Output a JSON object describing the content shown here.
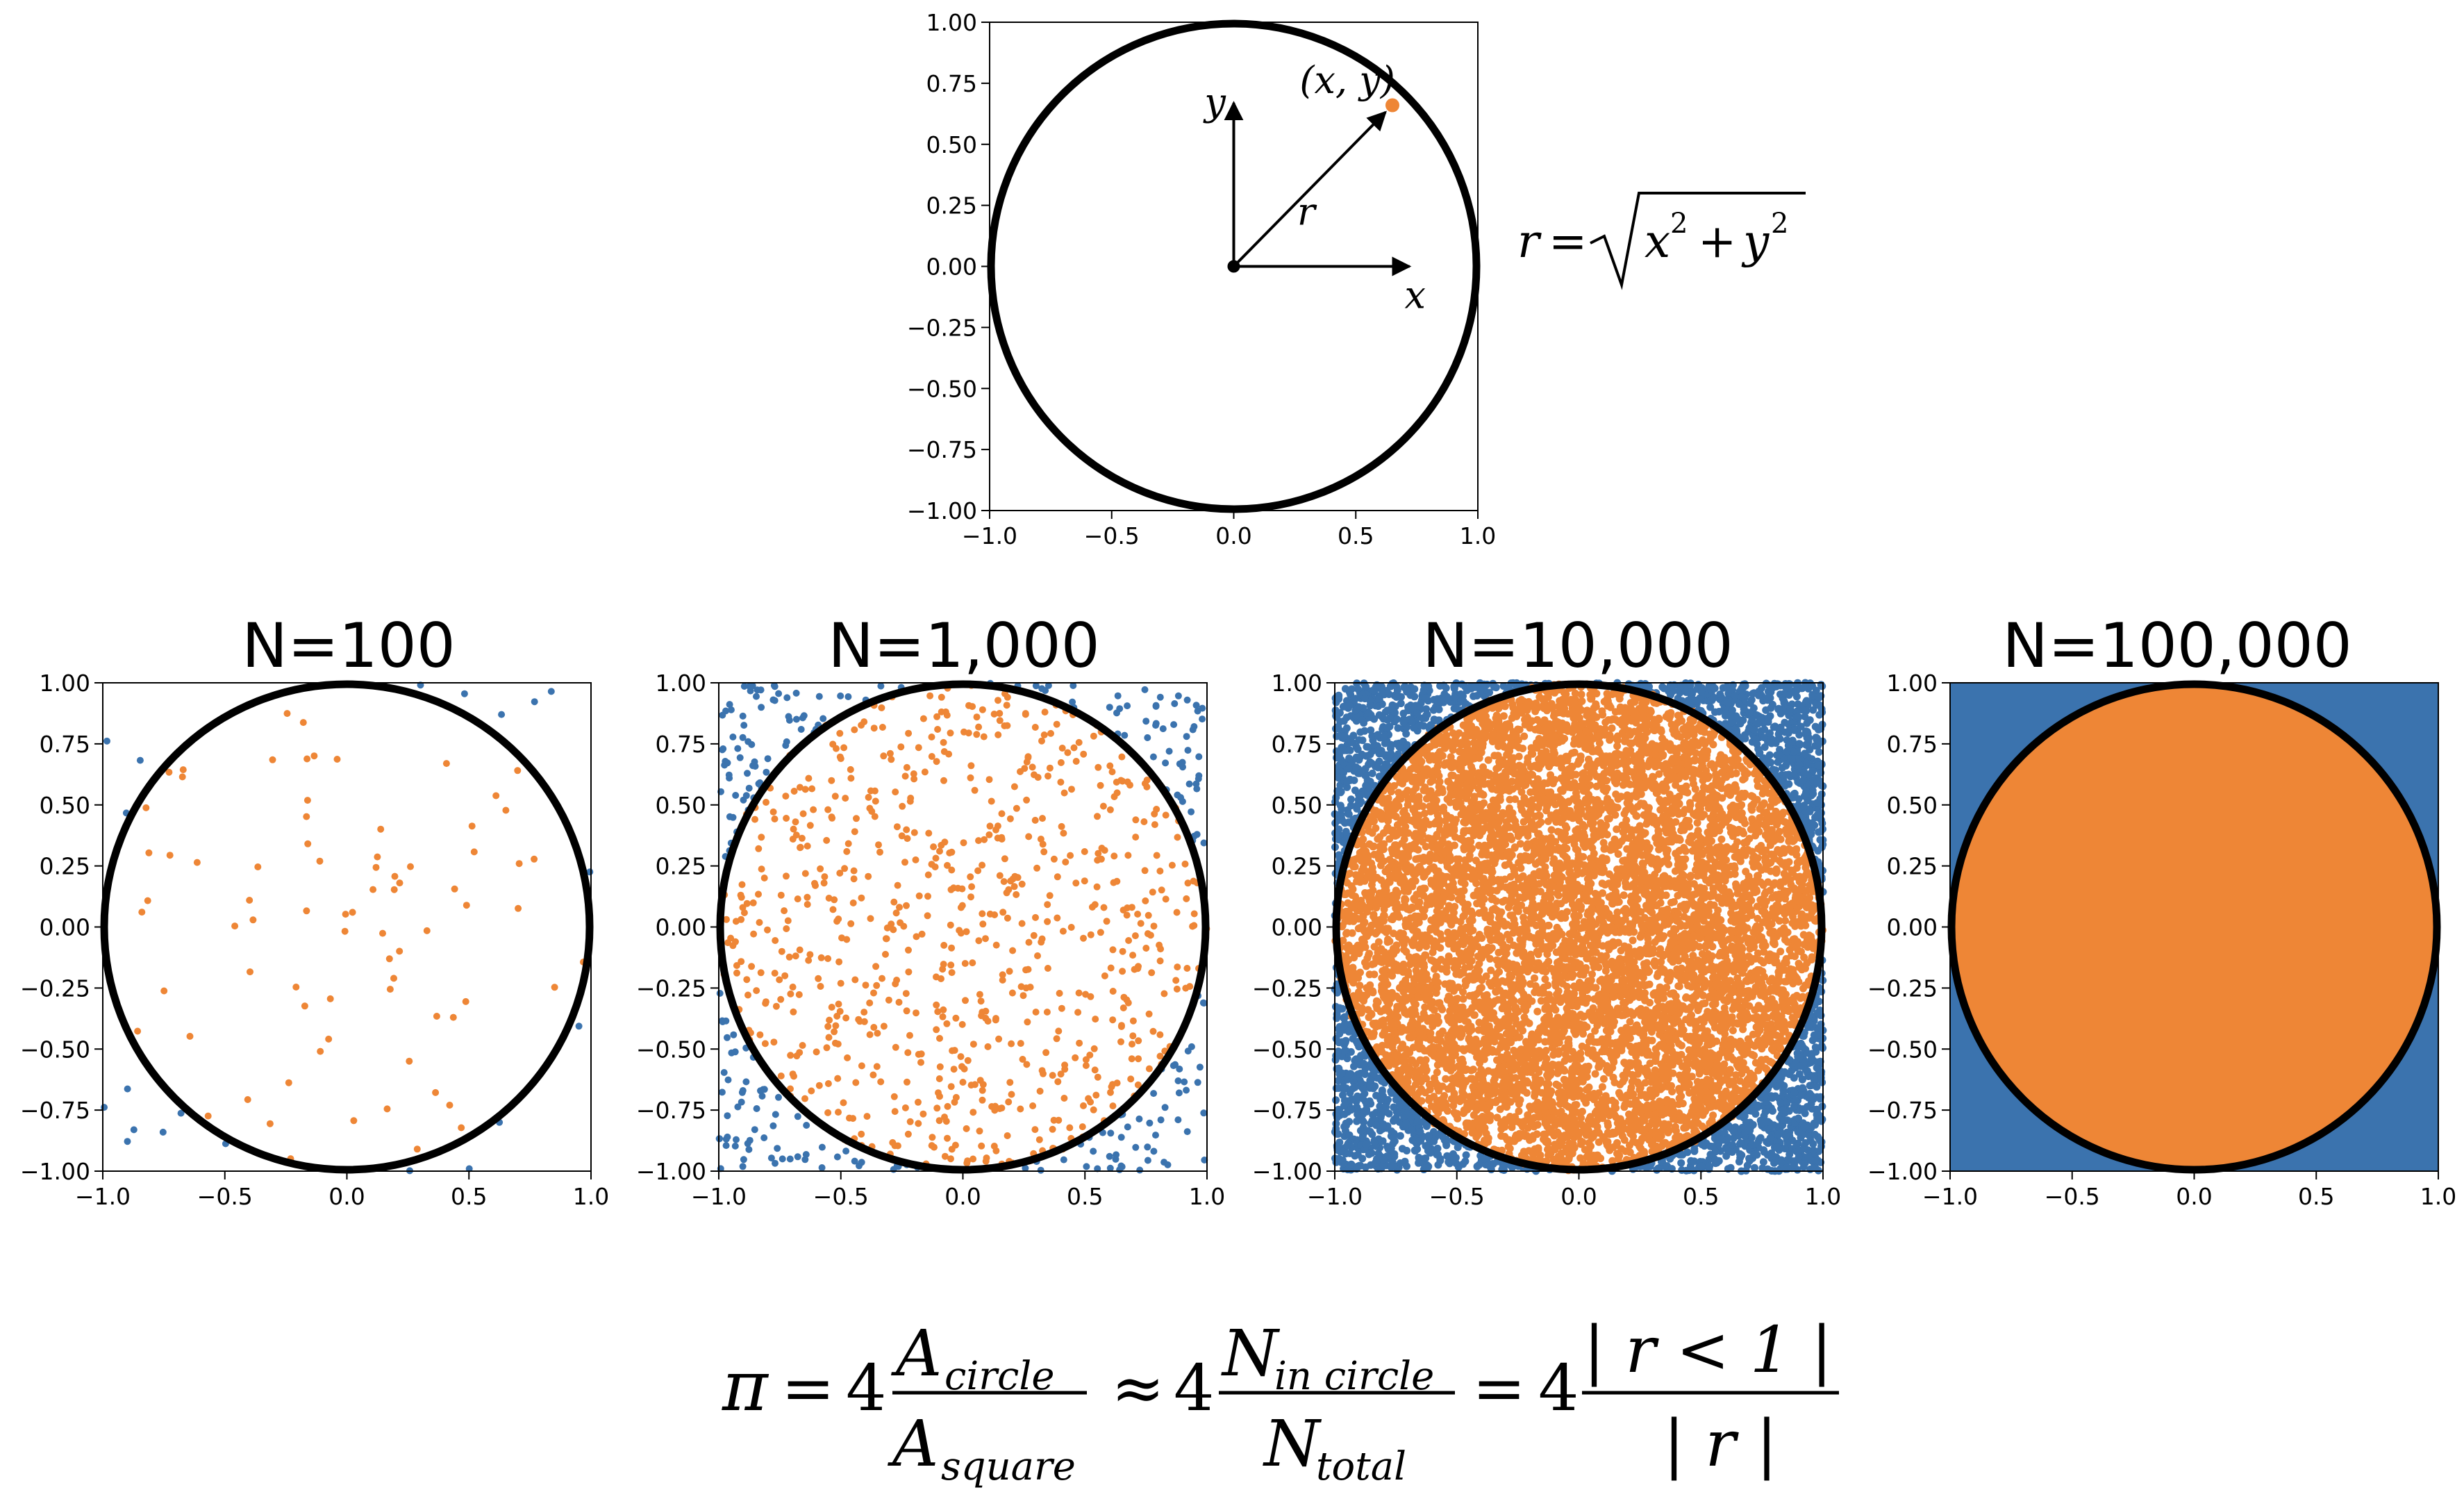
{
  "chart_data": [
    {
      "type": "scatter",
      "id": "diagram",
      "title": "",
      "xlim": [
        -1.0,
        1.0
      ],
      "ylim": [
        -1.0,
        1.0
      ],
      "xticks": [
        "−1.0",
        "−0.5",
        "0.0",
        "0.5",
        "1.0"
      ],
      "yticks": [
        "1.00",
        "0.75",
        "0.50",
        "0.25",
        "0.00",
        "−0.25",
        "−0.50",
        "−0.75",
        "−1.00"
      ],
      "circle_radius": 1.0,
      "point": {
        "x": 0.65,
        "y": 0.66,
        "label": "(x, y)"
      },
      "radius_label": "r",
      "axis_arrows": {
        "x_label": "x",
        "y_label": "y"
      },
      "formula": "r = √(x² + y²)"
    },
    {
      "type": "scatter",
      "id": "n100",
      "title": "N=100",
      "n": 100,
      "xlim": [
        -1.0,
        1.0
      ],
      "ylim": [
        -1.0,
        1.0
      ],
      "xticks": [
        "−1.0",
        "−0.5",
        "0.0",
        "0.5",
        "1.0"
      ],
      "yticks": [
        "1.00",
        "0.75",
        "0.50",
        "0.25",
        "0.00",
        "−0.25",
        "−0.50",
        "−0.75",
        "−1.00"
      ],
      "seed": 11
    },
    {
      "type": "scatter",
      "id": "n1000",
      "title": "N=1,000",
      "n": 1000,
      "xlim": [
        -1.0,
        1.0
      ],
      "ylim": [
        -1.0,
        1.0
      ],
      "xticks": [
        "−1.0",
        "−0.5",
        "0.0",
        "0.5",
        "1.0"
      ],
      "yticks": [
        "1.00",
        "0.75",
        "0.50",
        "0.25",
        "0.00",
        "−0.25",
        "−0.50",
        "−0.75",
        "−1.00"
      ],
      "seed": 23
    },
    {
      "type": "scatter",
      "id": "n10000",
      "title": "N=10,000",
      "n": 10000,
      "xlim": [
        -1.0,
        1.0
      ],
      "ylim": [
        -1.0,
        1.0
      ],
      "xticks": [
        "−1.0",
        "−0.5",
        "0.0",
        "0.5",
        "1.0"
      ],
      "yticks": [
        "1.00",
        "0.75",
        "0.50",
        "0.25",
        "0.00",
        "−0.25",
        "−0.50",
        "−0.75",
        "−1.00"
      ],
      "seed": 37
    },
    {
      "type": "scatter",
      "id": "n100000",
      "title": "N=100,000",
      "n": 100000,
      "xlim": [
        -1.0,
        1.0
      ],
      "ylim": [
        -1.0,
        1.0
      ],
      "xticks": [
        "−1.0",
        "−0.5",
        "0.0",
        "0.5",
        "1.0"
      ],
      "yticks": [
        "1.00",
        "0.75",
        "0.50",
        "0.25",
        "0.00",
        "−0.25",
        "−0.50",
        "−0.75",
        "−1.00"
      ],
      "seed": 53
    }
  ],
  "colors": {
    "inside": "#ee8636",
    "outside": "#3b73ae",
    "circle": "#000000",
    "axes": "#000000"
  },
  "equation": {
    "lhs": "π",
    "eq": "=",
    "approx": "≈",
    "four": "4",
    "A": "A",
    "circle_sub": "circle",
    "square_sub": "square",
    "N": "N",
    "in_circle_sub": "in circle",
    "total_sub": "total",
    "cond_num": "| r < 1 |",
    "cond_den": "| r |"
  }
}
